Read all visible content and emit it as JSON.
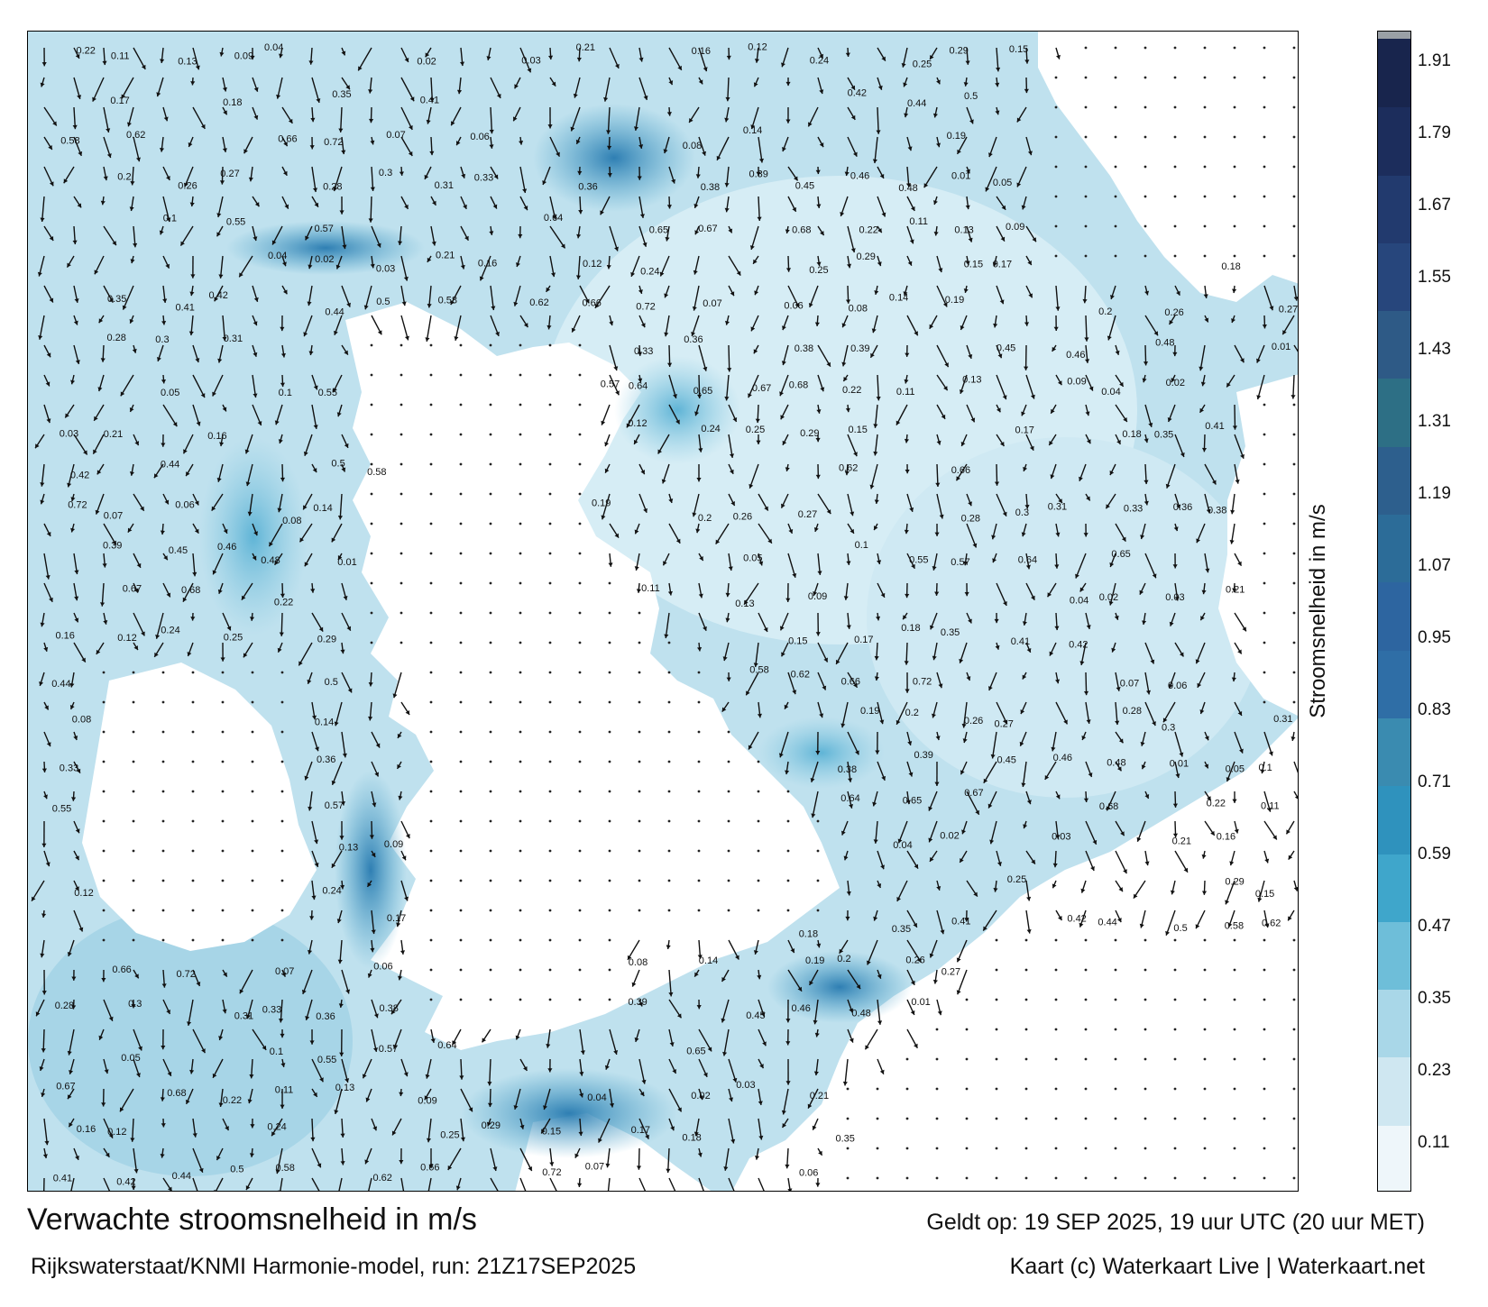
{
  "map": {
    "sample_values": [
      "0.22",
      "0.11",
      "0.13",
      "0.09",
      "0.04",
      "0.02",
      "0.03",
      "0.21",
      "0.16",
      "0.12",
      "0.24",
      "0.25",
      "0.29",
      "0.15",
      "0.17",
      "0.18",
      "0.35",
      "0.41",
      "0.42",
      "0.44",
      "0.5",
      "0.58",
      "0.62",
      "0.66",
      "0.72",
      "0.07",
      "0.06",
      "0.08",
      "0.14",
      "0.19",
      "0.2",
      "0.26",
      "0.27",
      "0.28",
      "0.3",
      "0.31",
      "0.33",
      "0.36",
      "0.38",
      "0.39",
      "0.45",
      "0.46",
      "0.48",
      "0.01",
      "0.05",
      "0.1",
      "0.55",
      "0.57",
      "0.64",
      "0.65",
      "0.67",
      "0.68"
    ]
  },
  "colorbar": {
    "label": "Stroomsnelheid in m/s",
    "ticks": [
      "0.11",
      "0.23",
      "0.35",
      "0.47",
      "0.59",
      "0.71",
      "0.83",
      "0.95",
      "1.07",
      "1.19",
      "1.31",
      "1.43",
      "1.55",
      "1.67",
      "1.79",
      "1.91"
    ],
    "colors": [
      "#eef6fa",
      "#cfe7f1",
      "#a9d7e8",
      "#6ebed9",
      "#3fa6cb",
      "#2f92bd",
      "#3a8bb0",
      "#2f6ea6",
      "#2d65a0",
      "#2c6c98",
      "#2d5f8d",
      "#2d6f85",
      "#2e5a86",
      "#27467c",
      "#223a6e",
      "#1c2d5c",
      "#18254d"
    ]
  },
  "captions": {
    "title": "Verwachte stroomsnelheid in m/s",
    "valid": "Geldt op: 19 SEP 2025, 19 uur UTC (20 uur MET)",
    "model": "Rijkswaterstaat/KNMI Harmonie-model, run: 21Z17SEP2025",
    "credit": "Kaart (c) Waterkaart Live | Waterkaart.net"
  }
}
